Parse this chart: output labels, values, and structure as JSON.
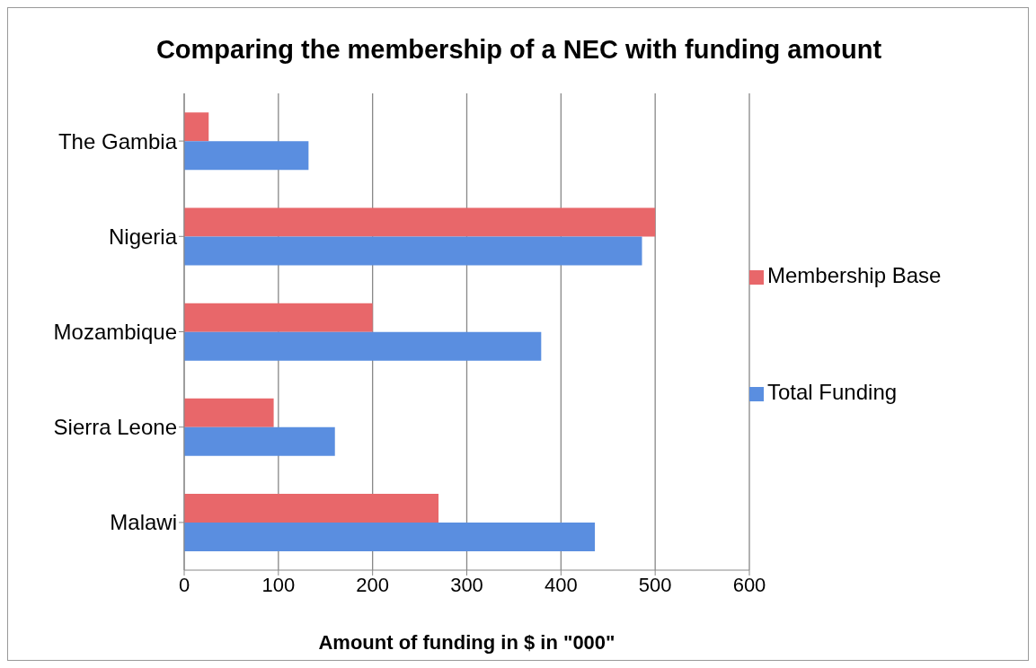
{
  "chart_data": {
    "type": "bar",
    "orientation": "horizontal",
    "title": "Comparing the membership of a NEC with funding amount",
    "xlabel": "Amount of funding in $ in \"000\"",
    "categories": [
      "The Gambia",
      "Nigeria",
      "Mozambique",
      "Sierra Leone",
      "Malawi"
    ],
    "series": [
      {
        "name": "Membership Base",
        "color": "#e8676a",
        "values": [
          26,
          500,
          200,
          95,
          270
        ]
      },
      {
        "name": "Total Funding",
        "color": "#5a8ee0",
        "values": [
          132,
          486,
          379,
          160,
          436
        ]
      }
    ],
    "xlim": [
      0,
      600
    ],
    "xticks": [
      0,
      100,
      200,
      300,
      400,
      500,
      600
    ],
    "grid": "x",
    "legend": "right"
  }
}
